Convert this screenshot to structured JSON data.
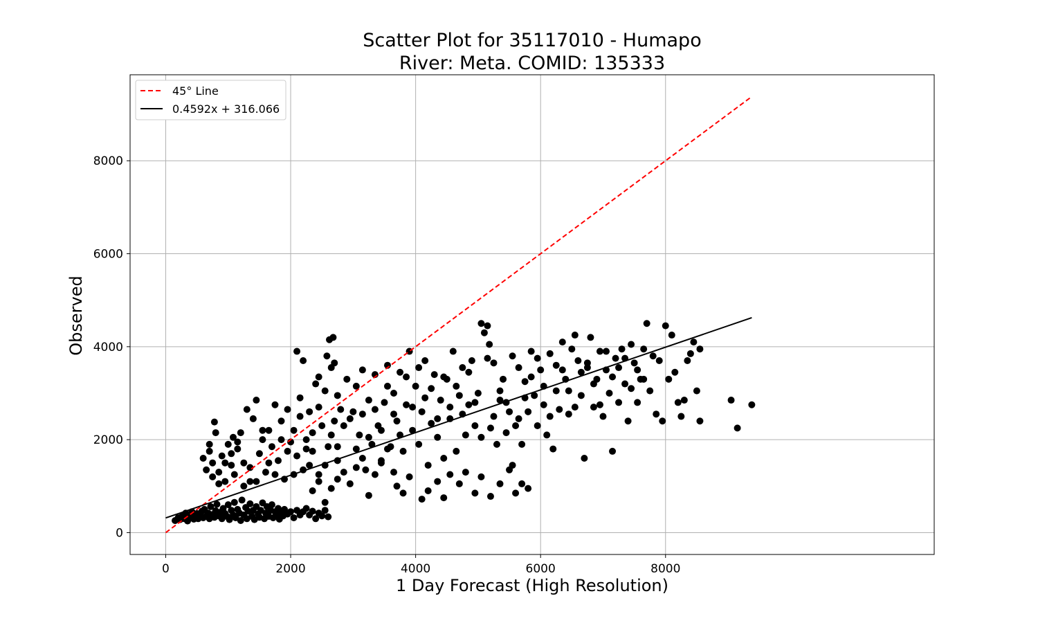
{
  "chart_data": {
    "type": "scatter",
    "title_line1": "Scatter Plot for 35117010 - Humapo",
    "title_line2": "River: Meta. COMID: 135333",
    "xlabel": "1 Day Forecast (High Resolution)",
    "ylabel": "Observed",
    "xlim": [
      -570,
      12300
    ],
    "ylim": [
      -470,
      9850
    ],
    "xticks": [
      0,
      2000,
      4000,
      6000,
      8000
    ],
    "yticks": [
      0,
      2000,
      4000,
      6000,
      8000
    ],
    "grid": true,
    "legend_position": "top-left",
    "legend": [
      {
        "label": "45° Line",
        "style": "dashed",
        "color": "#ff0000"
      },
      {
        "label": "0.4592x + 316.066",
        "style": "solid",
        "color": "#000000"
      }
    ],
    "reference_line": {
      "x": [
        0,
        9380
      ],
      "y": [
        0,
        9380
      ]
    },
    "fit_line": {
      "slope": 0.4592,
      "intercept": 316.066,
      "x": [
        0,
        9380
      ]
    },
    "points": [
      [
        150,
        260
      ],
      [
        200,
        320
      ],
      [
        230,
        280
      ],
      [
        260,
        350
      ],
      [
        300,
        300
      ],
      [
        320,
        420
      ],
      [
        350,
        250
      ],
      [
        380,
        380
      ],
      [
        400,
        330
      ],
      [
        420,
        450
      ],
      [
        450,
        290
      ],
      [
        480,
        360
      ],
      [
        500,
        410
      ],
      [
        520,
        300
      ],
      [
        550,
        380
      ],
      [
        580,
        460
      ],
      [
        600,
        320
      ],
      [
        620,
        500
      ],
      [
        650,
        350
      ],
      [
        680,
        420
      ],
      [
        700,
        300
      ],
      [
        720,
        560
      ],
      [
        750,
        390
      ],
      [
        780,
        330
      ],
      [
        800,
        470
      ],
      [
        820,
        610
      ],
      [
        850,
        360
      ],
      [
        880,
        440
      ],
      [
        900,
        300
      ],
      [
        920,
        520
      ],
      [
        950,
        410
      ],
      [
        980,
        350
      ],
      [
        1000,
        600
      ],
      [
        1020,
        280
      ],
      [
        1050,
        480
      ],
      [
        1080,
        380
      ],
      [
        1100,
        650
      ],
      [
        1120,
        320
      ],
      [
        1150,
        500
      ],
      [
        1180,
        420
      ],
      [
        1200,
        260
      ],
      [
        1220,
        700
      ],
      [
        1250,
        380
      ],
      [
        1280,
        540
      ],
      [
        1300,
        300
      ],
      [
        1320,
        460
      ],
      [
        1350,
        620
      ],
      [
        1380,
        350
      ],
      [
        1400,
        480
      ],
      [
        1420,
        280
      ],
      [
        1450,
        560
      ],
      [
        1480,
        400
      ],
      [
        1500,
        330
      ],
      [
        1520,
        480
      ],
      [
        1550,
        640
      ],
      [
        1580,
        300
      ],
      [
        1600,
        420
      ],
      [
        1620,
        560
      ],
      [
        1650,
        350
      ],
      [
        1680,
        480
      ],
      [
        1700,
        600
      ],
      [
        1720,
        320
      ],
      [
        1750,
        450
      ],
      [
        1780,
        380
      ],
      [
        1800,
        520
      ],
      [
        1820,
        290
      ],
      [
        1850,
        440
      ],
      [
        1880,
        360
      ],
      [
        1900,
        500
      ],
      [
        1950,
        400
      ],
      [
        2000,
        450
      ],
      [
        2050,
        320
      ],
      [
        2100,
        480
      ],
      [
        2150,
        380
      ],
      [
        2200,
        450
      ],
      [
        2250,
        520
      ],
      [
        2300,
        380
      ],
      [
        2350,
        460
      ],
      [
        2400,
        300
      ],
      [
        2450,
        420
      ],
      [
        2500,
        360
      ],
      [
        2550,
        480
      ],
      [
        2600,
        340
      ],
      [
        600,
        1600
      ],
      [
        650,
        1350
      ],
      [
        700,
        1750
      ],
      [
        750,
        1500
      ],
      [
        780,
        2380
      ],
      [
        800,
        2150
      ],
      [
        850,
        1300
      ],
      [
        900,
        1650
      ],
      [
        950,
        1100
      ],
      [
        1000,
        1900
      ],
      [
        1050,
        1450
      ],
      [
        1080,
        2050
      ],
      [
        1100,
        1250
      ],
      [
        1150,
        1800
      ],
      [
        1200,
        2150
      ],
      [
        1250,
        1500
      ],
      [
        1300,
        2650
      ],
      [
        1350,
        1100
      ],
      [
        1400,
        2450
      ],
      [
        1450,
        2850
      ],
      [
        1500,
        1700
      ],
      [
        1550,
        2000
      ],
      [
        1600,
        1300
      ],
      [
        1650,
        2200
      ],
      [
        1700,
        1850
      ],
      [
        1750,
        2750
      ],
      [
        1800,
        1550
      ],
      [
        1850,
        2400
      ],
      [
        1900,
        1150
      ],
      [
        1950,
        2650
      ],
      [
        2000,
        1950
      ],
      [
        2050,
        2200
      ],
      [
        2100,
        1650
      ],
      [
        2150,
        2900
      ],
      [
        2200,
        1350
      ],
      [
        2250,
        2000
      ],
      [
        2300,
        2600
      ],
      [
        2350,
        1750
      ],
      [
        2400,
        3200
      ],
      [
        2450,
        1250
      ],
      [
        2500,
        2300
      ],
      [
        2550,
        3050
      ],
      [
        2600,
        1850
      ],
      [
        2650,
        3550
      ],
      [
        2700,
        2400
      ],
      [
        2750,
        1550
      ],
      [
        2800,
        2650
      ],
      [
        2100,
        3900
      ],
      [
        2200,
        3700
      ],
      [
        2450,
        3350
      ],
      [
        2580,
        3800
      ],
      [
        2620,
        4150
      ],
      [
        2680,
        4200
      ],
      [
        2700,
        3650
      ],
      [
        2750,
        2950
      ],
      [
        2900,
        3300
      ],
      [
        3000,
        2600
      ],
      [
        3050,
        3150
      ],
      [
        3100,
        2100
      ],
      [
        3150,
        3500
      ],
      [
        3200,
        1350
      ],
      [
        3250,
        2850
      ],
      [
        3300,
        1900
      ],
      [
        3350,
        3400
      ],
      [
        3400,
        2300
      ],
      [
        3450,
        1500
      ],
      [
        3500,
        2800
      ],
      [
        3550,
        3600
      ],
      [
        3600,
        1850
      ],
      [
        3650,
        3000
      ],
      [
        3700,
        2400
      ],
      [
        3750,
        3450
      ],
      [
        3800,
        1750
      ],
      [
        3850,
        2750
      ],
      [
        3900,
        3900
      ],
      [
        3950,
        2200
      ],
      [
        4000,
        3150
      ],
      [
        4050,
        1900
      ],
      [
        4100,
        2600
      ],
      [
        4150,
        3700
      ],
      [
        4200,
        1450
      ],
      [
        4250,
        2350
      ],
      [
        4300,
        3400
      ],
      [
        4350,
        2050
      ],
      [
        4400,
        2850
      ],
      [
        4450,
        1600
      ],
      [
        4500,
        3300
      ],
      [
        4550,
        2450
      ],
      [
        4600,
        3900
      ],
      [
        4650,
        1750
      ],
      [
        4700,
        2950
      ],
      [
        4750,
        3550
      ],
      [
        4800,
        2100
      ],
      [
        4850,
        2750
      ],
      [
        4900,
        3700
      ],
      [
        4950,
        2300
      ],
      [
        5000,
        3000
      ],
      [
        5050,
        4500
      ],
      [
        5100,
        4300
      ],
      [
        5150,
        4450
      ],
      [
        5180,
        4050
      ],
      [
        5200,
        2250
      ],
      [
        5250,
        3650
      ],
      [
        5300,
        1900
      ],
      [
        5350,
        2850
      ],
      [
        5400,
        3300
      ],
      [
        5450,
        2150
      ],
      [
        5500,
        2600
      ],
      [
        5550,
        1450
      ],
      [
        5600,
        2300
      ],
      [
        5650,
        3550
      ],
      [
        5700,
        1900
      ],
      [
        5750,
        3250
      ],
      [
        5800,
        2600
      ],
      [
        5850,
        3900
      ],
      [
        5900,
        2950
      ],
      [
        5950,
        2300
      ],
      [
        6000,
        3500
      ],
      [
        6050,
        2750
      ],
      [
        6100,
        2100
      ],
      [
        6150,
        3850
      ],
      [
        6200,
        1800
      ],
      [
        6250,
        3600
      ],
      [
        6300,
        2650
      ],
      [
        6350,
        4100
      ],
      [
        6400,
        3300
      ],
      [
        6450,
        2550
      ],
      [
        6500,
        3950
      ],
      [
        6550,
        4250
      ],
      [
        6600,
        3700
      ],
      [
        6650,
        2950
      ],
      [
        6700,
        1600
      ],
      [
        6750,
        3550
      ],
      [
        6800,
        4200
      ],
      [
        6850,
        2700
      ],
      [
        6900,
        3300
      ],
      [
        6950,
        3900
      ],
      [
        7000,
        2500
      ],
      [
        7050,
        3500
      ],
      [
        7100,
        3000
      ],
      [
        7150,
        1750
      ],
      [
        7200,
        3750
      ],
      [
        7250,
        2800
      ],
      [
        7300,
        3950
      ],
      [
        7350,
        3200
      ],
      [
        7400,
        2400
      ],
      [
        7450,
        4050
      ],
      [
        7500,
        3650
      ],
      [
        7550,
        2800
      ],
      [
        7600,
        3300
      ],
      [
        7650,
        3950
      ],
      [
        7700,
        4500
      ],
      [
        7750,
        3050
      ],
      [
        7800,
        3800
      ],
      [
        7850,
        2550
      ],
      [
        7900,
        3700
      ],
      [
        7950,
        2400
      ],
      [
        8000,
        4450
      ],
      [
        8050,
        3300
      ],
      [
        8100,
        4250
      ],
      [
        8150,
        3450
      ],
      [
        8200,
        2800
      ],
      [
        8250,
        2500
      ],
      [
        8300,
        2850
      ],
      [
        8350,
        3700
      ],
      [
        8400,
        3850
      ],
      [
        8450,
        4100
      ],
      [
        8500,
        3050
      ],
      [
        8550,
        2400
      ],
      [
        8550,
        3950
      ],
      [
        9050,
        2850
      ],
      [
        9150,
        2250
      ],
      [
        9380,
        2750
      ],
      [
        3700,
        1000
      ],
      [
        3800,
        850
      ],
      [
        3900,
        1200
      ],
      [
        4100,
        720
      ],
      [
        4200,
        900
      ],
      [
        4350,
        1100
      ],
      [
        4450,
        750
      ],
      [
        4550,
        1250
      ],
      [
        4700,
        1050
      ],
      [
        4800,
        1300
      ],
      [
        4950,
        850
      ],
      [
        5050,
        1200
      ],
      [
        5200,
        780
      ],
      [
        5350,
        1050
      ],
      [
        5500,
        1350
      ],
      [
        5600,
        850
      ],
      [
        5700,
        1050
      ],
      [
        5800,
        950
      ],
      [
        2300,
        1450
      ],
      [
        2350,
        900
      ],
      [
        2450,
        1100
      ],
      [
        2550,
        650
      ],
      [
        2650,
        950
      ],
      [
        2750,
        1150
      ],
      [
        2850,
        1300
      ],
      [
        2950,
        1050
      ],
      [
        3050,
        1400
      ],
      [
        3150,
        1600
      ],
      [
        3250,
        800
      ],
      [
        3350,
        1250
      ],
      [
        3450,
        1550
      ],
      [
        3550,
        1800
      ],
      [
        3650,
        1300
      ],
      [
        700,
        1900
      ],
      [
        750,
        1200
      ],
      [
        850,
        1050
      ],
      [
        950,
        1500
      ],
      [
        1050,
        1700
      ],
      [
        1150,
        1950
      ],
      [
        1250,
        1000
      ],
      [
        1350,
        1400
      ],
      [
        1450,
        1100
      ],
      [
        1550,
        2200
      ],
      [
        1650,
        1500
      ],
      [
        1750,
        1250
      ],
      [
        1850,
        2000
      ],
      [
        1950,
        1750
      ],
      [
        2050,
        1250
      ],
      [
        2150,
        2500
      ],
      [
        2250,
        1800
      ],
      [
        2350,
        2150
      ],
      [
        2450,
        2700
      ],
      [
        2550,
        1450
      ],
      [
        2650,
        2100
      ],
      [
        2750,
        1850
      ],
      [
        2850,
        2300
      ],
      [
        2950,
        2450
      ],
      [
        3050,
        1800
      ],
      [
        3150,
        2550
      ],
      [
        3250,
        2050
      ],
      [
        3350,
        2650
      ],
      [
        3450,
        2200
      ],
      [
        3550,
        3150
      ],
      [
        3650,
        2550
      ],
      [
        3750,
        2100
      ],
      [
        3850,
        3350
      ],
      [
        3950,
        2700
      ],
      [
        4050,
        3550
      ],
      [
        4150,
        2900
      ],
      [
        4250,
        3100
      ],
      [
        4350,
        2450
      ],
      [
        4450,
        3350
      ],
      [
        4550,
        2700
      ],
      [
        4650,
        3150
      ],
      [
        4750,
        2550
      ],
      [
        4850,
        3450
      ],
      [
        4950,
        2800
      ],
      [
        5050,
        2050
      ],
      [
        5150,
        3750
      ],
      [
        5250,
        2500
      ],
      [
        5350,
        3050
      ],
      [
        5450,
        2800
      ],
      [
        5550,
        3800
      ],
      [
        5650,
        2450
      ],
      [
        5750,
        2900
      ],
      [
        5850,
        3350
      ],
      [
        5950,
        3750
      ],
      [
        6050,
        3150
      ],
      [
        6150,
        2500
      ],
      [
        6250,
        3050
      ],
      [
        6350,
        3500
      ],
      [
        6450,
        3050
      ],
      [
        6550,
        2700
      ],
      [
        6650,
        3450
      ],
      [
        6750,
        3650
      ],
      [
        6850,
        3200
      ],
      [
        6950,
        2750
      ],
      [
        7050,
        3900
      ],
      [
        7150,
        3350
      ],
      [
        7250,
        3550
      ],
      [
        7350,
        3750
      ],
      [
        7450,
        3100
      ],
      [
        7550,
        3500
      ],
      [
        7650,
        3300
      ]
    ]
  }
}
